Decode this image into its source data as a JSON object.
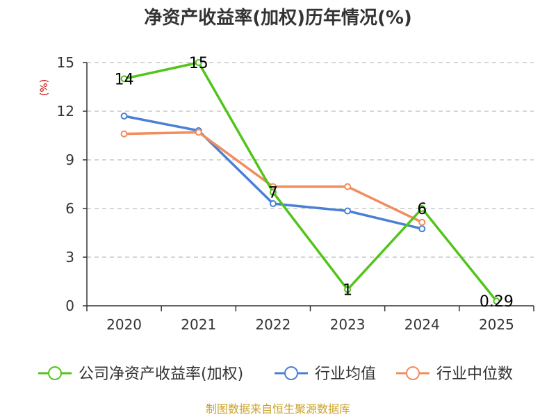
{
  "colors": {
    "company": "#52c41a",
    "industry_avg": "#4a7fd6",
    "industry_median": "#f28c5c",
    "source_text": "#c9a227",
    "ylabel_text": "#d00000"
  },
  "chart_data": {
    "type": "line",
    "title": "净资产收益率(加权)历年情况(%)",
    "xlabel": "",
    "ylabel": "(%)",
    "x": [
      "2020",
      "2021",
      "2022",
      "2023",
      "2024",
      "2025"
    ],
    "ylim": [
      0,
      15
    ],
    "yticks": [
      "0",
      "3",
      "6",
      "9",
      "12",
      "15"
    ],
    "ytick_values": [
      0,
      3,
      6,
      9,
      12,
      15
    ],
    "grid": true,
    "legend_position": "bottom",
    "series": [
      {
        "name": "公司净资产收益率(加权)",
        "color_key": "company",
        "values": [
          14,
          15,
          7,
          1,
          6,
          0.29
        ],
        "labels": [
          "14",
          "15",
          "7",
          "1",
          "6",
          "0.29"
        ]
      },
      {
        "name": "行业均值",
        "color_key": "industry_avg",
        "values": [
          11.7,
          10.8,
          6.3,
          5.85,
          4.75,
          null
        ]
      },
      {
        "name": "行业中位数",
        "color_key": "industry_median",
        "values": [
          10.6,
          10.7,
          7.35,
          7.35,
          5.15,
          null
        ]
      }
    ]
  },
  "footer": {
    "source": "制图数据来自恒生聚源数据库"
  }
}
